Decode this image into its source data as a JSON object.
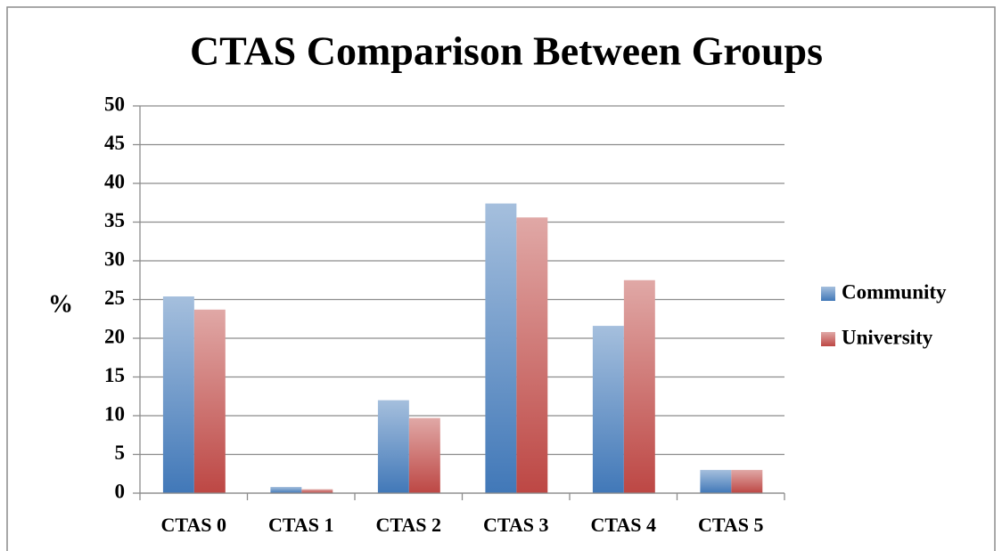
{
  "chart_data": {
    "type": "bar",
    "title": "CTAS Comparison Between Groups",
    "y_label": "%",
    "categories": [
      "CTAS 0",
      "CTAS 1",
      "CTAS 2",
      "CTAS 3",
      "CTAS 4",
      "CTAS 5"
    ],
    "series": [
      {
        "name": "Community",
        "color": "#4a7ebb",
        "values": [
          25.4,
          0.8,
          12.0,
          37.4,
          21.6,
          3.0
        ]
      },
      {
        "name": "University",
        "color": "#c0504d",
        "values": [
          23.7,
          0.5,
          9.7,
          35.6,
          27.5,
          3.0
        ]
      }
    ],
    "ylim": [
      0,
      50
    ],
    "yticks": [
      0,
      5,
      10,
      15,
      20,
      25,
      30,
      35,
      40,
      45,
      50
    ],
    "grid": true,
    "legend": "right"
  }
}
